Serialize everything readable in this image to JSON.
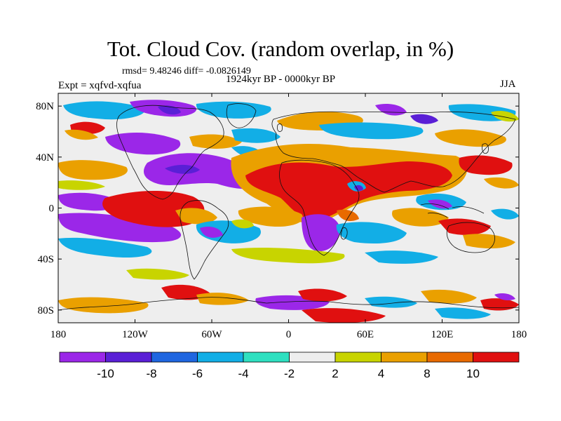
{
  "header": {
    "title": "Tot. Cloud Cov. (random overlap, in %)",
    "stats": "rmsd= 9.48246 diff= -0.0826149",
    "subtitle": "1924kyr BP - 0000kyr BP",
    "experiment": "Expt = xqfvd-xqfua",
    "season": "JJA"
  },
  "axes": {
    "lat_labels": [
      "80N",
      "40N",
      "0",
      "40S",
      "80S"
    ],
    "lat_values": [
      80,
      40,
      0,
      -40,
      -80
    ],
    "lon_labels": [
      "180",
      "120W",
      "60W",
      "0",
      "60E",
      "120E",
      "180"
    ],
    "lon_values": [
      -180,
      -120,
      -60,
      0,
      60,
      120,
      180
    ],
    "lat_range": [
      -90,
      90
    ],
    "lon_range": [
      -180,
      180
    ]
  },
  "colorbar": {
    "colors": [
      "#9b27e8",
      "#5a1fd6",
      "#1f66e0",
      "#12aee6",
      "#2ee0c0",
      "#eeeeee",
      "#c8d400",
      "#eaa000",
      "#e86a00",
      "#e01010"
    ],
    "tick_labels": [
      "-10",
      "-8",
      "-6",
      "-4",
      "-2",
      "2",
      "4",
      "8",
      "10"
    ]
  },
  "colors": {
    "neg_strong": "#9b27e8",
    "neg_mid": "#12aee6",
    "neutral": "#eeeeee",
    "pos_mid": "#eaa000",
    "pos_strong": "#e01010"
  }
}
